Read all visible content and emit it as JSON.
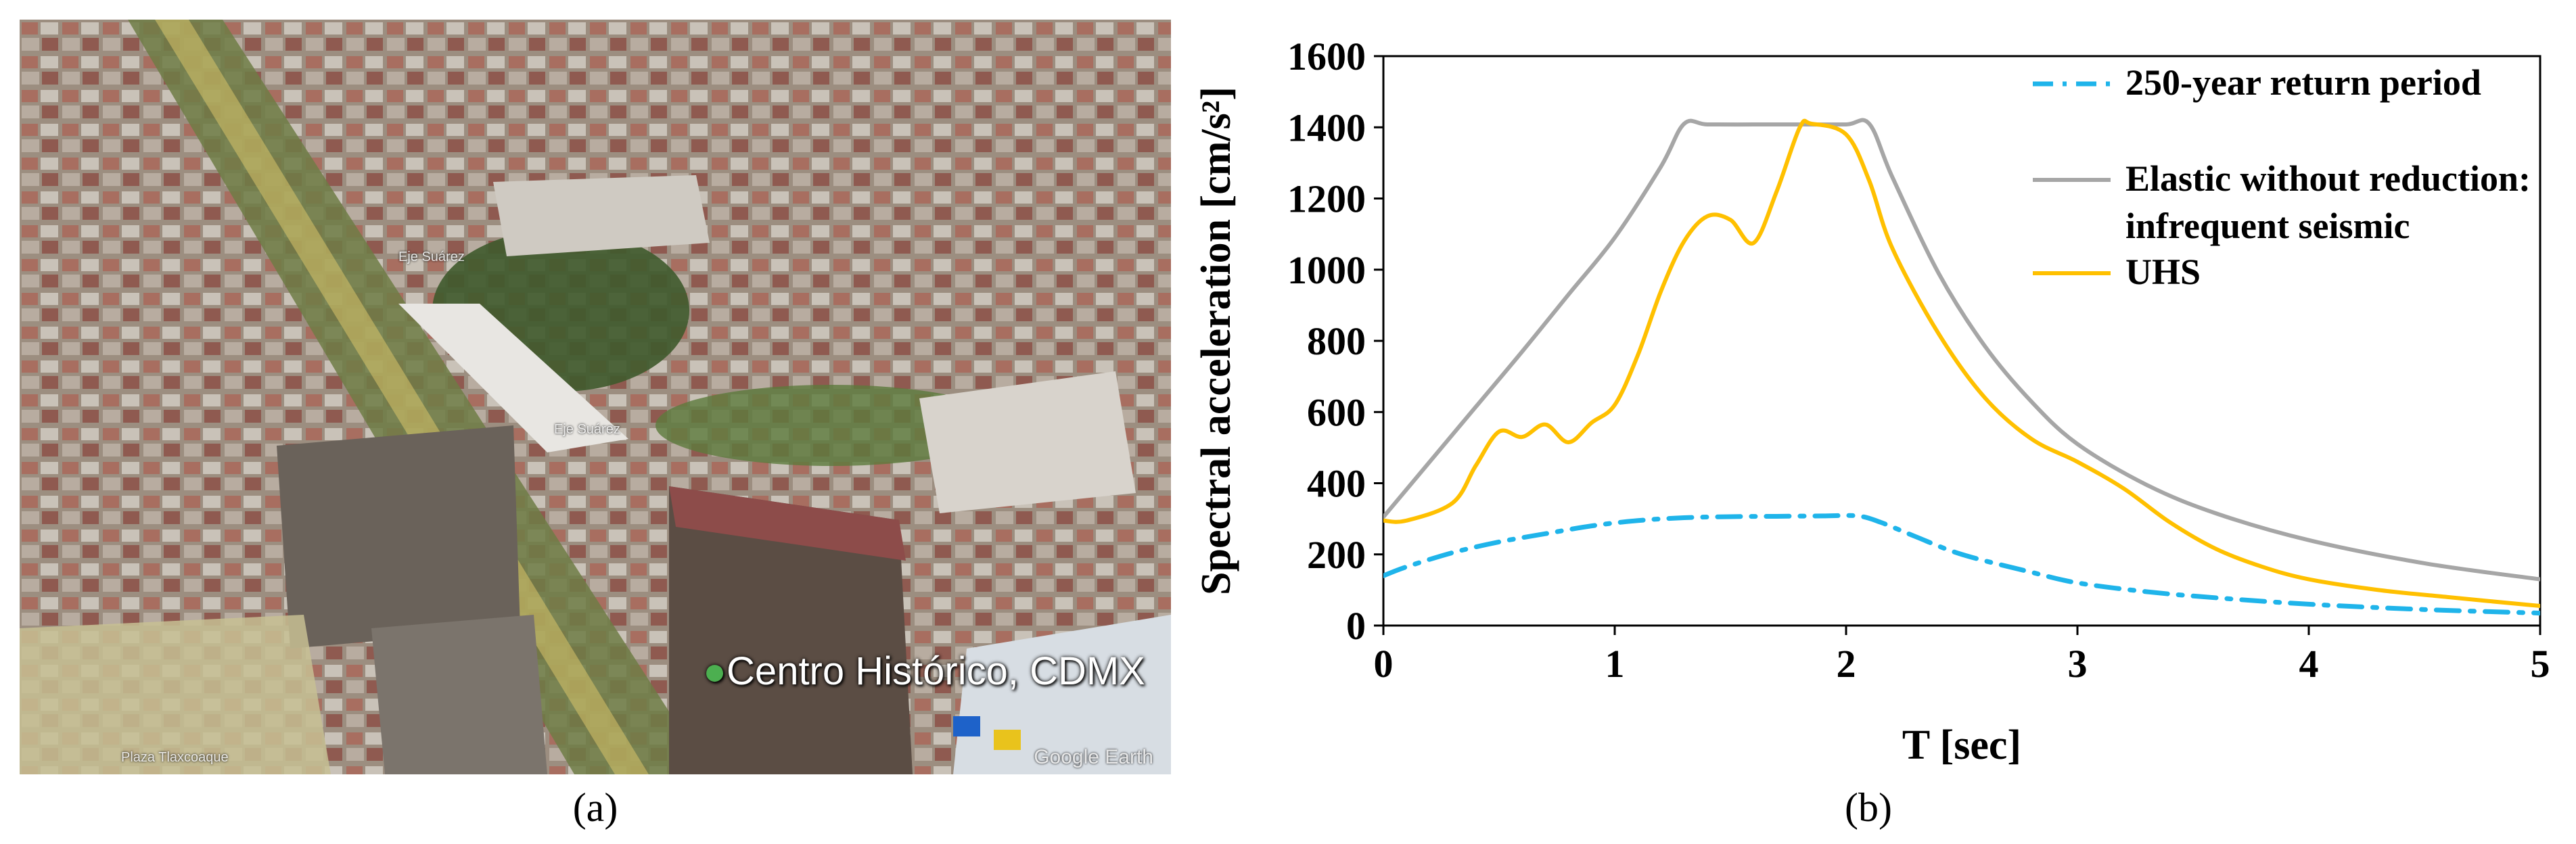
{
  "panel_a": {
    "caption": "(a)",
    "pin_label": "Centro Histórico, CDMX",
    "watermark": "Google Earth",
    "place_labels": [
      "Eje Suárez",
      "Eje Suárez",
      "Plaza Tlaxcoaque"
    ]
  },
  "panel_b": {
    "caption": "(b)"
  },
  "colors": {
    "series_250": "#1fb4ea",
    "series_elastic": "#a6a6a6",
    "series_uhs": "#ffc000"
  },
  "chart_data": {
    "type": "line",
    "xlabel": "T [sec]",
    "ylabel": "Spectral acceleration [cm/s²]",
    "xlim": [
      0,
      5
    ],
    "ylim": [
      0,
      1600
    ],
    "xticks": [
      0,
      1,
      2,
      3,
      4,
      5
    ],
    "yticks": [
      0,
      200,
      400,
      600,
      800,
      1000,
      1200,
      1400,
      1600
    ],
    "grid": false,
    "legend_position": "top-right",
    "series": [
      {
        "name": "250-year return period",
        "style": "dash-dot",
        "x": [
          0,
          0.1,
          0.3,
          0.5,
          0.7,
          0.9,
          1.1,
          1.3,
          1.5,
          1.7,
          1.9,
          2.05,
          2.15,
          2.3,
          2.5,
          2.8,
          3.0,
          3.3,
          3.6,
          4.0,
          4.5,
          5.0
        ],
        "y": [
          140,
          165,
          205,
          235,
          258,
          280,
          295,
          303,
          306,
          307,
          308,
          308,
          290,
          250,
          200,
          150,
          120,
          95,
          78,
          60,
          45,
          35
        ]
      },
      {
        "name": "Elastic without reduction: infrequent seismic",
        "style": "solid",
        "x": [
          0,
          0.2,
          0.4,
          0.6,
          0.8,
          1.0,
          1.2,
          1.3,
          1.4,
          1.6,
          1.8,
          2.0,
          2.1,
          2.2,
          2.4,
          2.6,
          2.8,
          3.0,
          3.3,
          3.6,
          4.0,
          4.5,
          5.0
        ],
        "y": [
          305,
          460,
          615,
          770,
          930,
          1090,
          1290,
          1410,
          1408,
          1408,
          1408,
          1408,
          1410,
          1260,
          990,
          785,
          630,
          510,
          395,
          315,
          240,
          175,
          130
        ]
      },
      {
        "name": "UHS",
        "style": "solid",
        "x": [
          0,
          0.1,
          0.3,
          0.4,
          0.5,
          0.6,
          0.7,
          0.8,
          0.9,
          1.0,
          1.1,
          1.2,
          1.3,
          1.4,
          1.5,
          1.6,
          1.7,
          1.8,
          1.85,
          2.0,
          2.1,
          2.2,
          2.4,
          2.6,
          2.8,
          3.0,
          3.2,
          3.4,
          3.6,
          3.8,
          4.0,
          4.3,
          4.6,
          5.0
        ],
        "y": [
          295,
          295,
          345,
          450,
          545,
          530,
          565,
          515,
          570,
          620,
          760,
          940,
          1080,
          1150,
          1140,
          1075,
          1220,
          1400,
          1410,
          1380,
          1250,
          1060,
          820,
          640,
          525,
          460,
          385,
          290,
          215,
          165,
          130,
          100,
          80,
          55
        ]
      }
    ]
  }
}
